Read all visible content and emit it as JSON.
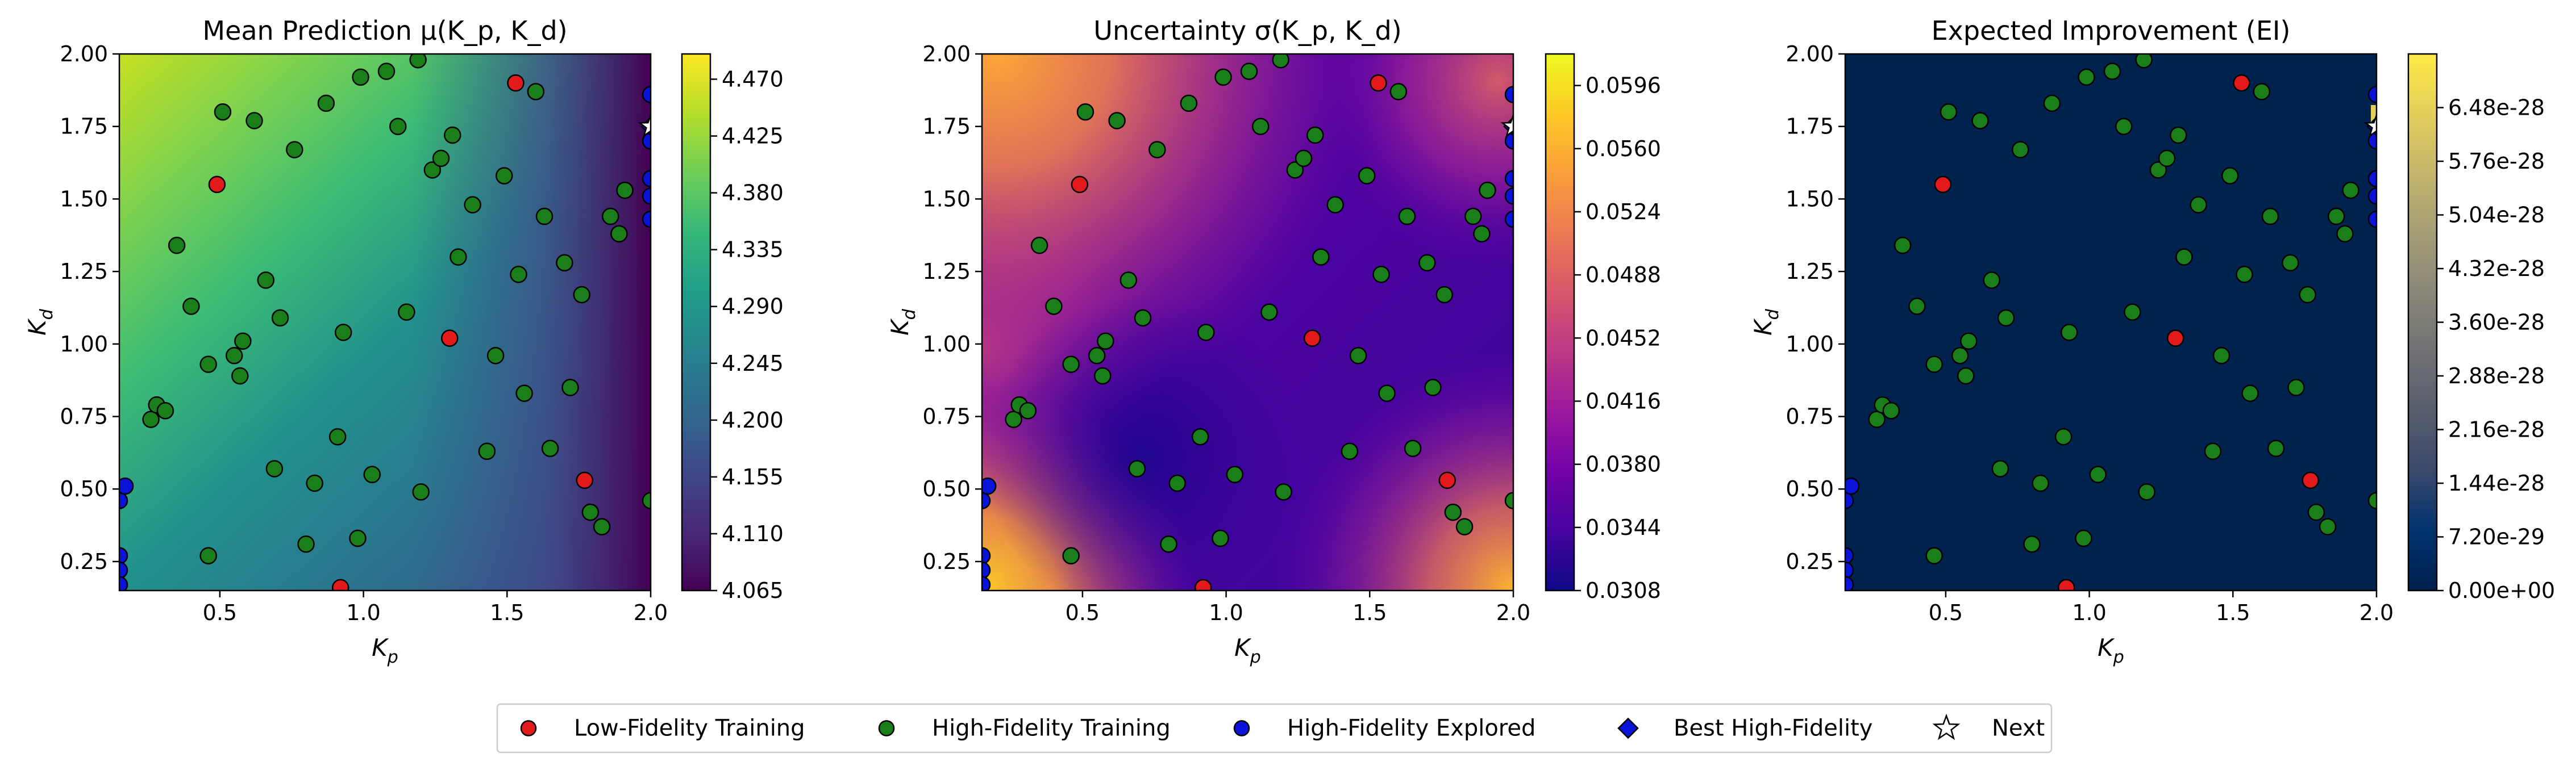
{
  "chart_data": [
    {
      "type": "heatmap",
      "title": "Mean Prediction μ(K_p, K_d)",
      "xlabel": "K_p",
      "ylabel": "K_d",
      "xlim": [
        0.15,
        2.0
      ],
      "ylim": [
        0.15,
        2.0
      ],
      "xticks": [
        "0.5",
        "1.0",
        "1.5",
        "2.0"
      ],
      "yticks": [
        "0.25",
        "0.50",
        "0.75",
        "1.00",
        "1.25",
        "1.50",
        "1.75",
        "2.00"
      ],
      "colormap": "viridis",
      "colorbar": {
        "range": [
          4.065,
          4.49
        ],
        "ticks": [
          "4.065",
          "4.110",
          "4.155",
          "4.200",
          "4.245",
          "4.290",
          "4.335",
          "4.380",
          "4.425",
          "4.470"
        ]
      }
    },
    {
      "type": "heatmap",
      "title": "Uncertainty σ(K_p, K_d)",
      "xlabel": "K_p",
      "ylabel": "K_d",
      "xlim": [
        0.15,
        2.0
      ],
      "ylim": [
        0.15,
        2.0
      ],
      "xticks": [
        "0.5",
        "1.0",
        "1.5",
        "2.0"
      ],
      "yticks": [
        "0.25",
        "0.50",
        "0.75",
        "1.00",
        "1.25",
        "1.50",
        "1.75",
        "2.00"
      ],
      "colormap": "plasma",
      "colorbar": {
        "range": [
          0.0308,
          0.0614
        ],
        "ticks": [
          "0.0308",
          "0.0344",
          "0.0380",
          "0.0416",
          "0.0452",
          "0.0488",
          "0.0524",
          "0.0560",
          "0.0596"
        ]
      }
    },
    {
      "type": "heatmap",
      "title": "Expected Improvement (EI)",
      "xlabel": "K_p",
      "ylabel": "K_d",
      "xlim": [
        0.15,
        2.0
      ],
      "ylim": [
        0.15,
        2.0
      ],
      "xticks": [
        "0.5",
        "1.0",
        "1.5",
        "2.0"
      ],
      "yticks": [
        "0.25",
        "0.50",
        "0.75",
        "1.00",
        "1.25",
        "1.50",
        "1.75",
        "2.00"
      ],
      "colormap": "cividis",
      "colorbar": {
        "range": [
          0,
          7.2e-28
        ],
        "ticks": [
          "0.00e+00",
          "7.20e-29",
          "1.44e-28",
          "2.16e-28",
          "2.88e-28",
          "3.60e-28",
          "4.32e-28",
          "5.04e-28",
          "5.76e-28",
          "6.48e-28"
        ]
      }
    }
  ],
  "points": {
    "low_fidelity": [
      [
        0.49,
        1.55
      ],
      [
        1.3,
        1.02
      ],
      [
        1.53,
        1.9
      ],
      [
        1.77,
        0.53
      ],
      [
        0.92,
        0.16
      ]
    ],
    "high_fidelity": [
      [
        0.26,
        0.74
      ],
      [
        0.28,
        0.79
      ],
      [
        0.31,
        0.77
      ],
      [
        0.35,
        1.34
      ],
      [
        0.4,
        1.13
      ],
      [
        0.46,
        0.93
      ],
      [
        0.46,
        0.27
      ],
      [
        0.51,
        1.8
      ],
      [
        0.55,
        0.96
      ],
      [
        0.57,
        0.89
      ],
      [
        0.58,
        1.01
      ],
      [
        0.62,
        1.77
      ],
      [
        0.66,
        1.22
      ],
      [
        0.69,
        0.57
      ],
      [
        0.71,
        1.09
      ],
      [
        0.76,
        1.67
      ],
      [
        0.8,
        0.31
      ],
      [
        0.83,
        0.52
      ],
      [
        0.87,
        1.83
      ],
      [
        0.91,
        0.68
      ],
      [
        0.93,
        1.04
      ],
      [
        0.98,
        0.33
      ],
      [
        0.99,
        1.92
      ],
      [
        1.03,
        0.55
      ],
      [
        1.08,
        1.94
      ],
      [
        1.12,
        1.75
      ],
      [
        1.15,
        1.11
      ],
      [
        1.19,
        1.98
      ],
      [
        1.2,
        0.49
      ],
      [
        1.24,
        1.6
      ],
      [
        1.27,
        1.64
      ],
      [
        1.31,
        1.72
      ],
      [
        1.33,
        1.3
      ],
      [
        1.38,
        1.48
      ],
      [
        1.43,
        0.63
      ],
      [
        1.46,
        0.96
      ],
      [
        1.49,
        1.58
      ],
      [
        1.54,
        1.24
      ],
      [
        1.56,
        0.83
      ],
      [
        1.6,
        1.87
      ],
      [
        1.63,
        1.44
      ],
      [
        1.65,
        0.64
      ],
      [
        1.7,
        1.28
      ],
      [
        1.72,
        0.85
      ],
      [
        1.76,
        1.17
      ],
      [
        1.79,
        0.42
      ],
      [
        1.83,
        0.37
      ],
      [
        1.86,
        1.44
      ],
      [
        1.89,
        1.38
      ],
      [
        1.91,
        1.53
      ],
      [
        2.0,
        0.46
      ]
    ],
    "high_fidelity_explored": [
      [
        0.15,
        0.46
      ],
      [
        0.17,
        0.51
      ],
      [
        0.15,
        0.27
      ],
      [
        0.15,
        0.22
      ],
      [
        0.15,
        0.17
      ],
      [
        2.0,
        1.86
      ],
      [
        2.0,
        1.57
      ],
      [
        2.0,
        1.51
      ],
      [
        2.0,
        1.43
      ],
      [
        2.0,
        1.7
      ]
    ],
    "best_high_fidelity": [
      [
        2.0,
        1.75
      ]
    ],
    "next": [
      [
        2.0,
        1.75
      ]
    ]
  },
  "legend": {
    "placement": "bottom-center",
    "items": [
      {
        "label": "Low-Fidelity Training",
        "marker": "circle",
        "color": "#e31a1c"
      },
      {
        "label": "High-Fidelity Training",
        "marker": "circle",
        "color": "#1a7f1a"
      },
      {
        "label": "High-Fidelity Explored",
        "marker": "circle",
        "color": "#0a14d8"
      },
      {
        "label": "Best High-Fidelity",
        "marker": "diamond",
        "color": "#0a14d8"
      },
      {
        "label": "Next",
        "marker": "star",
        "color": "#ffffff"
      }
    ]
  }
}
